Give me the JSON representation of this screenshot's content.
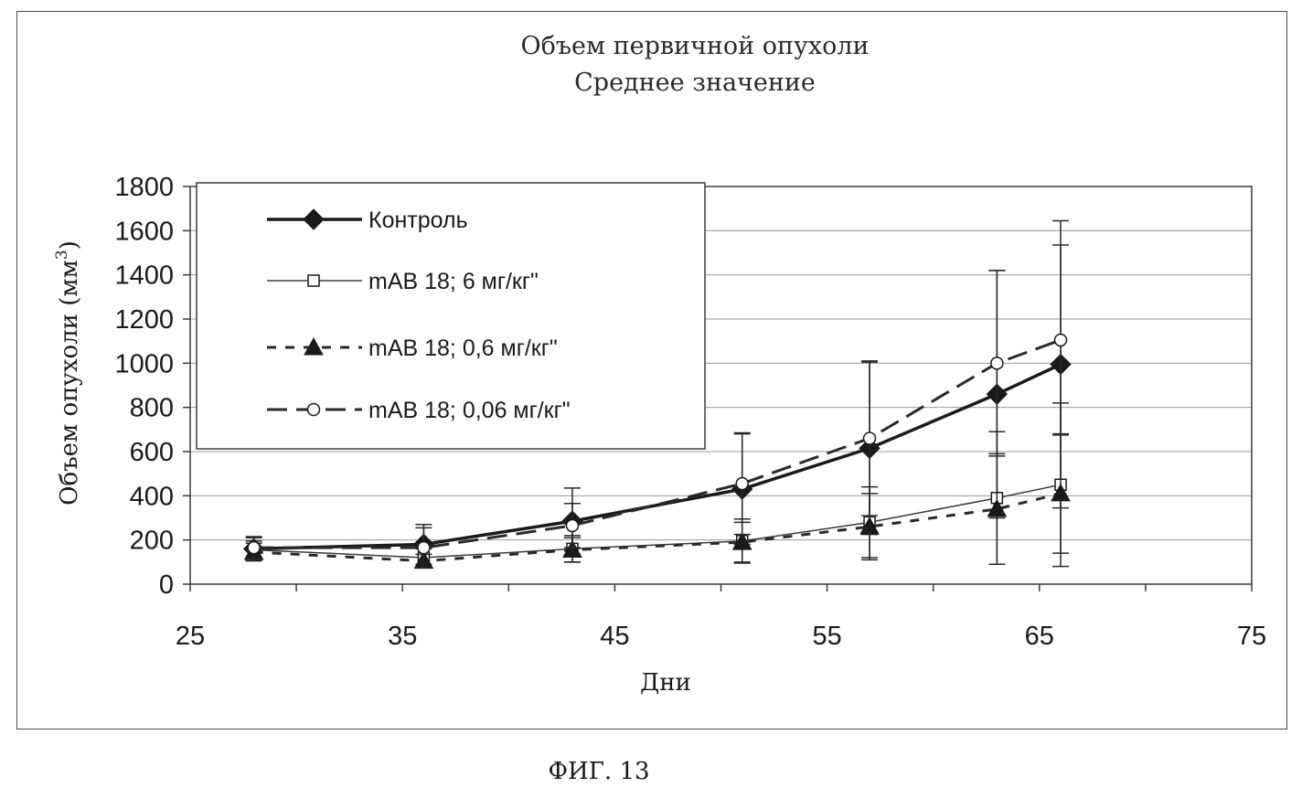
{
  "figure_caption": "ФИГ. 13",
  "chart_data": {
    "type": "line",
    "title": "Объем первичной опухоли",
    "subtitle": "Среднее значение",
    "xlabel": "Дни",
    "ylabel": "Объем опухоли (мм",
    "ylabel_superscript": "3",
    "ylabel_suffix": ")",
    "xlim": [
      25,
      75
    ],
    "ylim": [
      0,
      1800
    ],
    "x_ticks": [
      25,
      35,
      45,
      55,
      65,
      75
    ],
    "y_ticks": [
      0,
      200,
      400,
      600,
      800,
      1000,
      1200,
      1400,
      1600,
      1800
    ],
    "grid": "horizontal",
    "legend_position": "top-left",
    "x": [
      28,
      36,
      43,
      51,
      57,
      63,
      66
    ],
    "series": [
      {
        "name": "Контроль",
        "marker": "diamond-filled",
        "line": "solid-thick",
        "values": [
          160,
          180,
          285,
          430,
          615,
          860,
          995
        ],
        "error": [
          50,
          90,
          150,
          250,
          390,
          560,
          650
        ]
      },
      {
        "name": "mAB 18; 6 мг/кг\"",
        "marker": "square-open",
        "line": "solid-thin",
        "values": [
          155,
          120,
          160,
          195,
          280,
          390,
          450
        ],
        "error": [
          40,
          40,
          60,
          100,
          160,
          300,
          370
        ]
      },
      {
        "name": "mAB 18; 0,6 мг/кг\"",
        "marker": "triangle-filled",
        "line": "dashed",
        "values": [
          145,
          105,
          155,
          190,
          260,
          340,
          410
        ],
        "error": [
          40,
          30,
          55,
          90,
          150,
          250,
          270
        ]
      },
      {
        "name": "mAB 18; 0,06 мг/кг\"",
        "marker": "circle-open",
        "line": "long-dash",
        "values": [
          165,
          165,
          265,
          455,
          660,
          1000,
          1105
        ],
        "error": [
          50,
          90,
          100,
          230,
          350,
          420,
          430
        ]
      }
    ]
  }
}
